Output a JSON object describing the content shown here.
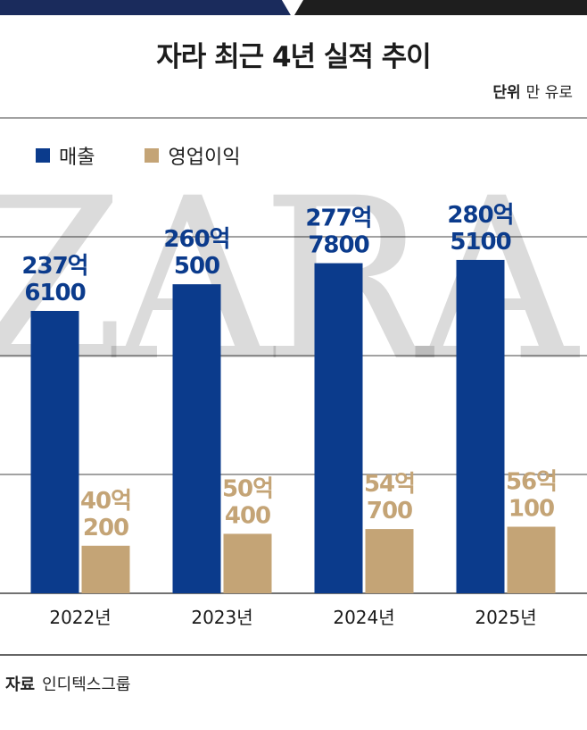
{
  "header": {
    "title": "자라 최근 4년 실적 추이",
    "unit_label": "단위",
    "unit_value": "만 유로"
  },
  "watermark": "ZARA",
  "source": {
    "label": "자료",
    "value": "인디텍스그룹"
  },
  "colors": {
    "sales": "#0b3b8c",
    "profit": "#c4a476",
    "navy": "#1a2b5c",
    "dark": "#1e1e1e"
  },
  "chart_data": {
    "type": "bar",
    "categories": [
      "2022년",
      "2023년",
      "2024년",
      "2025년"
    ],
    "series": [
      {
        "name": "매출",
        "values": [
          2376100,
          2600500,
          2777800,
          2805100
        ],
        "labels": [
          [
            "237억",
            "6100"
          ],
          [
            "260억",
            "500"
          ],
          [
            "277억",
            "7800"
          ],
          [
            "280억",
            "5100"
          ]
        ]
      },
      {
        "name": "영업이익",
        "values": [
          400200,
          500400,
          540700,
          560100
        ],
        "labels": [
          [
            "40억",
            "200"
          ],
          [
            "50억",
            "400"
          ],
          [
            "54억",
            "700"
          ],
          [
            "56억",
            "100"
          ]
        ]
      }
    ],
    "ylim": [
      0,
      4000000
    ],
    "grid": true,
    "legend": "top-left",
    "unit": "만 유로"
  }
}
